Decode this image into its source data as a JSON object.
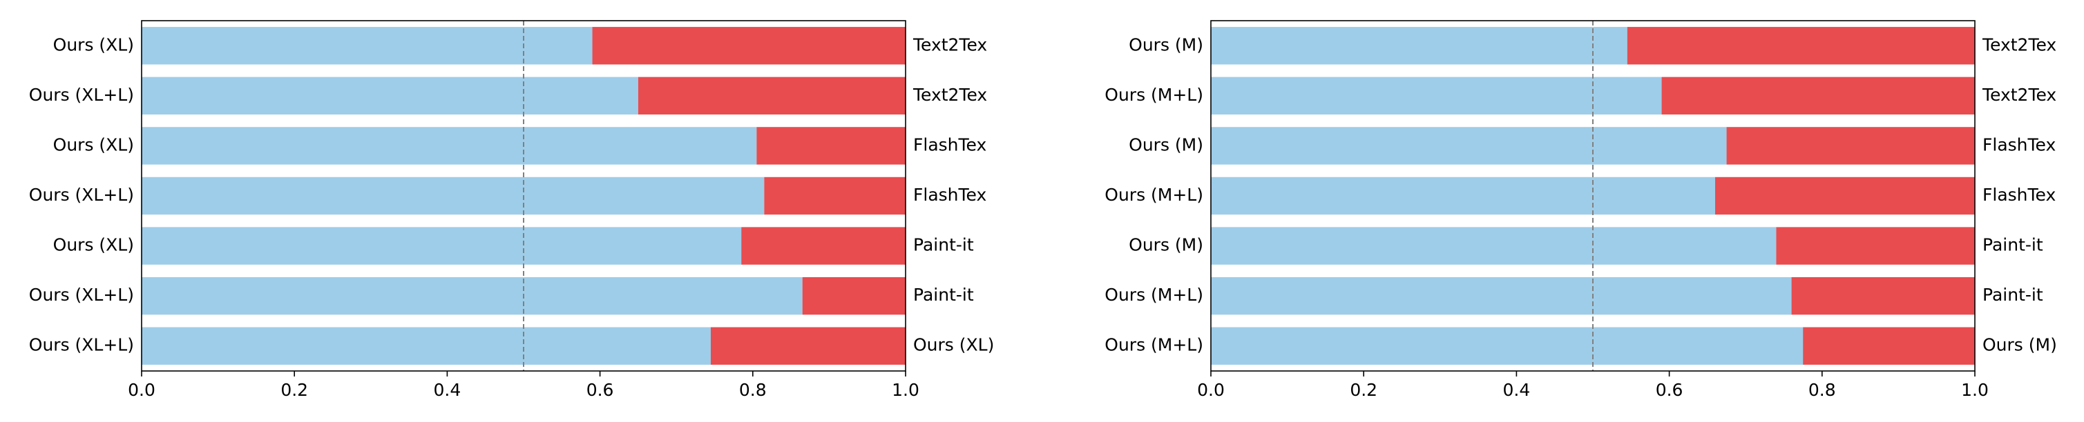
{
  "colors": {
    "left_segment": "#9ecde9",
    "right_segment": "#e84c4f",
    "reference_line": "#808080",
    "axis": "#000000"
  },
  "chart_data": [
    {
      "type": "bar",
      "orientation": "horizontal",
      "stacked": true,
      "left_labels": [
        "Ours (XL)",
        "Ours (XL+L)",
        "Ours (XL)",
        "Ours (XL+L)",
        "Ours (XL)",
        "Ours (XL+L)",
        "Ours (XL+L)"
      ],
      "right_labels": [
        "Text2Tex",
        "Text2Tex",
        "FlashTex",
        "FlashTex",
        "Paint-it",
        "Paint-it",
        "Ours (XL)"
      ],
      "values": [
        0.59,
        0.65,
        0.805,
        0.815,
        0.785,
        0.865,
        0.745
      ],
      "xlim": [
        0.0,
        1.0
      ],
      "xticks": [
        "0.0",
        "0.2",
        "0.4",
        "0.6",
        "0.8",
        "1.0"
      ],
      "reference_line": 0.5,
      "grid": false
    },
    {
      "type": "bar",
      "orientation": "horizontal",
      "stacked": true,
      "left_labels": [
        "Ours (M)",
        "Ours (M+L)",
        "Ours (M)",
        "Ours (M+L)",
        "Ours (M)",
        "Ours (M+L)",
        "Ours (M+L)"
      ],
      "right_labels": [
        "Text2Tex",
        "Text2Tex",
        "FlashTex",
        "FlashTex",
        "Paint-it",
        "Paint-it",
        "Ours (M)"
      ],
      "values": [
        0.545,
        0.59,
        0.675,
        0.66,
        0.74,
        0.76,
        0.775
      ],
      "xlim": [
        0.0,
        1.0
      ],
      "xticks": [
        "0.0",
        "0.2",
        "0.4",
        "0.6",
        "0.8",
        "1.0"
      ],
      "reference_line": 0.5,
      "grid": false
    }
  ]
}
